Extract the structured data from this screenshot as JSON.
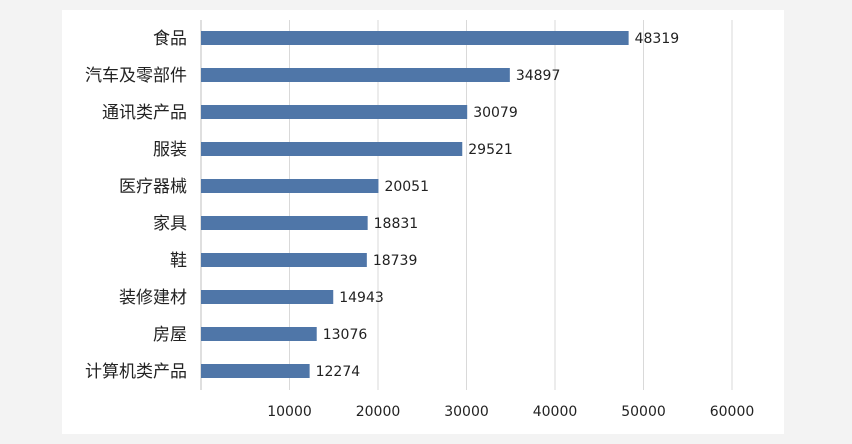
{
  "chart_data": {
    "type": "bar",
    "orientation": "horizontal",
    "categories": [
      "食品",
      "汽车及零部件",
      "通讯类产品",
      "服装",
      "医疗器械",
      "家具",
      "鞋",
      "装修建材",
      "房屋",
      "计算机类产品"
    ],
    "values": [
      48319,
      34897,
      30079,
      29521,
      20051,
      18831,
      18739,
      14943,
      13076,
      12274
    ],
    "value_labels": [
      "48319",
      "34897",
      "30079",
      "29521",
      "20051",
      "18831",
      "18739",
      "14943",
      "13076",
      "12274"
    ],
    "xticks": [
      "10000",
      "20000",
      "30000",
      "40000",
      "50000",
      "60000"
    ],
    "xlim": [
      0,
      60000
    ],
    "grid": true,
    "legend": "none",
    "bar_color": "#4f76a8",
    "grid_color": "#d9d9d9"
  }
}
